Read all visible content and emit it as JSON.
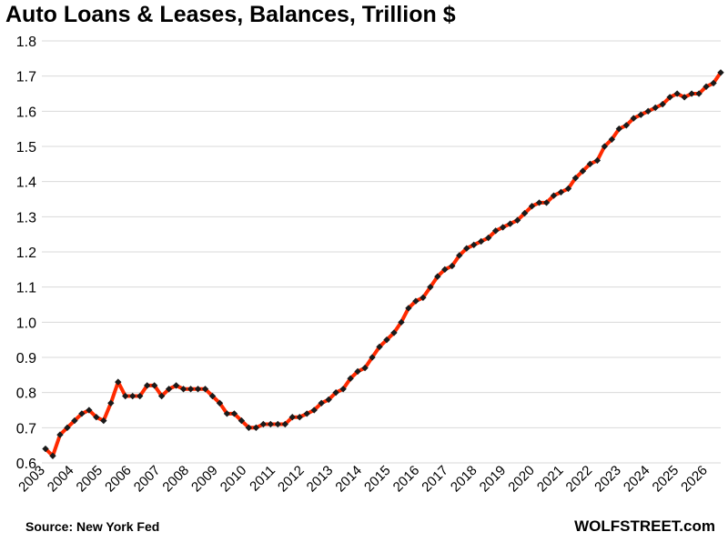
{
  "header": {
    "title": "Auto Loans & Leases, Balances, Trillion $"
  },
  "footer": {
    "source": "Source: New York Fed",
    "site": "WOLFSTREET.com"
  },
  "colors": {
    "line": "#ff2a00",
    "marker": "#1a1a1a",
    "grid": "#d9d9d9"
  },
  "chart_data": {
    "type": "line",
    "title": "Auto Loans & Leases, Balances, Trillion $",
    "xlabel": "",
    "ylabel": "",
    "ylim": [
      0.6,
      1.8
    ],
    "yticks": [
      "0.6",
      "0.7",
      "0.8",
      "0.9",
      "1.0",
      "1.1",
      "1.2",
      "1.3",
      "1.4",
      "1.5",
      "1.6",
      "1.7",
      "1.8"
    ],
    "xticks": [
      "2003",
      "2004",
      "2005",
      "2006",
      "2007",
      "2008",
      "2009",
      "2010",
      "2011",
      "2012",
      "2013",
      "2014",
      "2015",
      "2016",
      "2017",
      "2018",
      "2019",
      "2020",
      "2021",
      "2022",
      "2023",
      "2024",
      "2025",
      "2026"
    ],
    "grid": "horizontal",
    "frequency": "quarterly",
    "start": "2003 Q1",
    "series": [
      {
        "values": [
          0.64,
          0.62,
          0.68,
          0.7,
          0.72,
          0.74,
          0.75,
          0.73,
          0.72,
          0.77,
          0.83,
          0.79,
          0.79,
          0.79,
          0.82,
          0.82,
          0.79,
          0.81,
          0.82,
          0.81,
          0.81,
          0.81,
          0.81,
          0.79,
          0.77,
          0.74,
          0.74,
          0.72,
          0.7,
          0.7,
          0.71,
          0.71,
          0.71,
          0.71,
          0.73,
          0.73,
          0.74,
          0.75,
          0.77,
          0.78,
          0.8,
          0.81,
          0.84,
          0.86,
          0.87,
          0.9,
          0.93,
          0.95,
          0.97,
          1.0,
          1.04,
          1.06,
          1.07,
          1.1,
          1.13,
          1.15,
          1.16,
          1.19,
          1.21,
          1.22,
          1.23,
          1.24,
          1.26,
          1.27,
          1.28,
          1.29,
          1.31,
          1.33,
          1.34,
          1.34,
          1.36,
          1.37,
          1.38,
          1.41,
          1.43,
          1.45,
          1.46,
          1.5,
          1.52,
          1.55,
          1.56,
          1.58,
          1.59,
          1.6,
          1.61,
          1.62,
          1.64,
          1.65,
          1.64,
          1.65,
          1.65,
          1.67,
          1.68,
          1.71
        ]
      }
    ]
  }
}
